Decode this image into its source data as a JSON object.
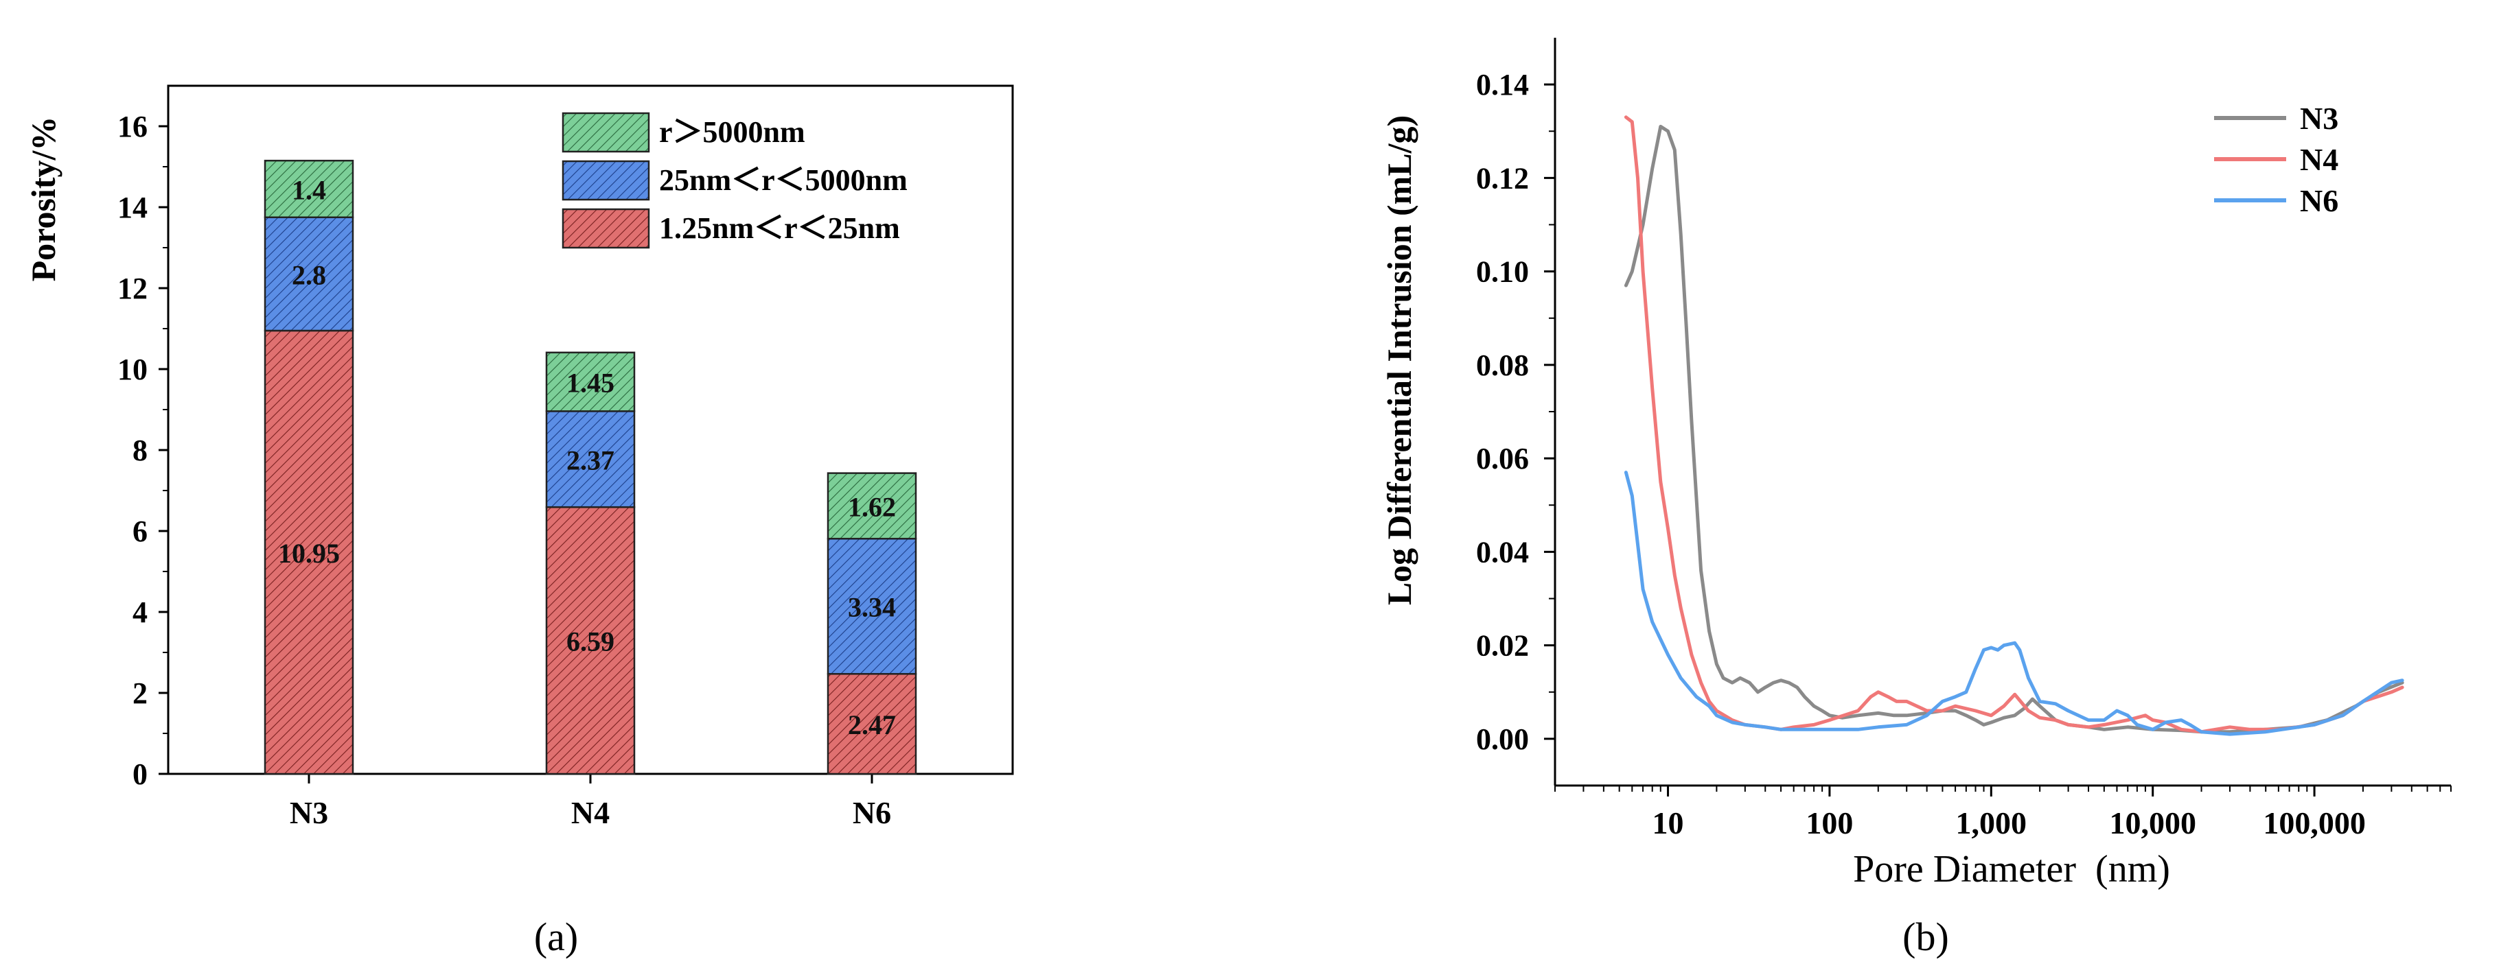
{
  "colors": {
    "red": "#e07070",
    "blue": "#5b8ee6",
    "green": "#7ccf98",
    "n3": "#8a8a8a",
    "n4": "#f07878",
    "n6": "#5aa2ee",
    "axis": "#000000"
  },
  "chart_data": [
    {
      "type": "bar",
      "stacked": true,
      "panel_label": "(a)",
      "title": "",
      "xlabel": "",
      "ylabel": "Porosity/%",
      "categories": [
        "N3",
        "N4",
        "N6"
      ],
      "ylim": [
        0,
        17
      ],
      "yticks": [
        0,
        2,
        4,
        6,
        8,
        10,
        12,
        14,
        16
      ],
      "series": [
        {
          "name": "1.25nm＜r＜25nm",
          "values": [
            10.95,
            6.59,
            2.47
          ],
          "labels": [
            "10.95",
            "6.59",
            "2.47"
          ],
          "color_key": "red"
        },
        {
          "name": "25nm＜r＜5000nm",
          "values": [
            2.8,
            2.37,
            3.34
          ],
          "labels": [
            "2.8",
            "2.37",
            "3.34"
          ],
          "color_key": "blue"
        },
        {
          "name": "r＞5000nm",
          "values": [
            1.4,
            1.45,
            1.62
          ],
          "labels": [
            "1.4",
            "1.45",
            "1.62"
          ],
          "color_key": "green"
        }
      ],
      "legend_position": "top-right"
    },
    {
      "type": "line",
      "panel_label": "(b)",
      "title": "",
      "xlabel": "Pore Diameter  (nm)",
      "ylabel": "Log Differential Intrusion (mL/g)",
      "xscale": "log",
      "xlim": [
        2,
        700000
      ],
      "ylim": [
        -0.01,
        0.15
      ],
      "xticks": [
        10,
        100,
        1000,
        10000,
        100000
      ],
      "xtick_labels": [
        "10",
        "100",
        "1,000",
        "10,000",
        "100,000"
      ],
      "yticks": [
        0.0,
        0.02,
        0.04,
        0.06,
        0.08,
        0.1,
        0.12,
        0.14
      ],
      "ytick_labels": [
        "0.00",
        "0.02",
        "0.04",
        "0.06",
        "0.08",
        "0.10",
        "0.12",
        "0.14"
      ],
      "legend_position": "top-right",
      "series": [
        {
          "name": "N3",
          "color_key": "n3",
          "x": [
            5.5,
            6,
            7,
            8,
            9,
            10,
            11,
            12,
            13,
            14,
            16,
            18,
            20,
            22,
            25,
            28,
            32,
            36,
            40,
            45,
            50,
            56,
            63,
            70,
            80,
            90,
            100,
            120,
            150,
            200,
            250,
            300,
            400,
            500,
            600,
            700,
            800,
            900,
            1000,
            1200,
            1400,
            1600,
            1800,
            2000,
            2500,
            3000,
            4000,
            5000,
            7000,
            10000,
            15000,
            20000,
            30000,
            50000,
            80000,
            120000,
            180000,
            250000,
            350000
          ],
          "y": [
            0.097,
            0.1,
            0.11,
            0.122,
            0.131,
            0.13,
            0.126,
            0.108,
            0.088,
            0.068,
            0.036,
            0.023,
            0.016,
            0.013,
            0.012,
            0.013,
            0.012,
            0.01,
            0.011,
            0.012,
            0.0125,
            0.012,
            0.011,
            0.009,
            0.007,
            0.006,
            0.005,
            0.0045,
            0.005,
            0.0055,
            0.005,
            0.005,
            0.0055,
            0.006,
            0.006,
            0.005,
            0.004,
            0.003,
            0.0035,
            0.0045,
            0.005,
            0.0065,
            0.0085,
            0.007,
            0.004,
            0.003,
            0.0025,
            0.002,
            0.0025,
            0.002,
            0.0018,
            0.0015,
            0.0015,
            0.002,
            0.0025,
            0.004,
            0.007,
            0.01,
            0.012
          ]
        },
        {
          "name": "N4",
          "color_key": "n4",
          "x": [
            5.5,
            6,
            6.5,
            7,
            8,
            9,
            10,
            11,
            12,
            14,
            16,
            18,
            20,
            25,
            30,
            40,
            50,
            60,
            80,
            100,
            150,
            180,
            200,
            230,
            260,
            300,
            400,
            500,
            600,
            800,
            1000,
            1200,
            1400,
            1700,
            2000,
            2500,
            3000,
            4000,
            5000,
            7000,
            9000,
            10000,
            12000,
            15000,
            20000,
            30000,
            40000,
            60000,
            100000,
            150000,
            200000,
            300000,
            350000
          ],
          "y": [
            0.133,
            0.132,
            0.12,
            0.1,
            0.075,
            0.055,
            0.045,
            0.035,
            0.028,
            0.018,
            0.012,
            0.008,
            0.006,
            0.004,
            0.003,
            0.0025,
            0.002,
            0.0025,
            0.003,
            0.004,
            0.006,
            0.009,
            0.01,
            0.009,
            0.008,
            0.008,
            0.006,
            0.006,
            0.007,
            0.006,
            0.005,
            0.007,
            0.0095,
            0.006,
            0.0045,
            0.004,
            0.003,
            0.0025,
            0.003,
            0.004,
            0.005,
            0.004,
            0.0035,
            0.002,
            0.0015,
            0.0025,
            0.002,
            0.002,
            0.003,
            0.005,
            0.008,
            0.01,
            0.011
          ]
        },
        {
          "name": "N6",
          "color_key": "n6",
          "x": [
            5.5,
            6,
            7,
            8,
            10,
            12,
            15,
            18,
            20,
            25,
            30,
            40,
            50,
            70,
            100,
            150,
            200,
            300,
            400,
            500,
            600,
            700,
            800,
            900,
            1000,
            1100,
            1200,
            1400,
            1500,
            1700,
            2000,
            2500,
            3000,
            4000,
            5000,
            6000,
            7000,
            8000,
            10000,
            12000,
            15000,
            17000,
            20000,
            30000,
            50000,
            100000,
            150000,
            200000,
            300000,
            350000
          ],
          "y": [
            0.057,
            0.052,
            0.032,
            0.025,
            0.018,
            0.013,
            0.009,
            0.007,
            0.005,
            0.0035,
            0.003,
            0.0025,
            0.002,
            0.002,
            0.002,
            0.002,
            0.0025,
            0.003,
            0.005,
            0.008,
            0.009,
            0.01,
            0.015,
            0.019,
            0.0195,
            0.019,
            0.02,
            0.0205,
            0.019,
            0.013,
            0.008,
            0.0075,
            0.006,
            0.004,
            0.004,
            0.006,
            0.005,
            0.003,
            0.002,
            0.0035,
            0.004,
            0.003,
            0.0015,
            0.001,
            0.0015,
            0.003,
            0.005,
            0.008,
            0.012,
            0.0125
          ]
        }
      ]
    }
  ]
}
